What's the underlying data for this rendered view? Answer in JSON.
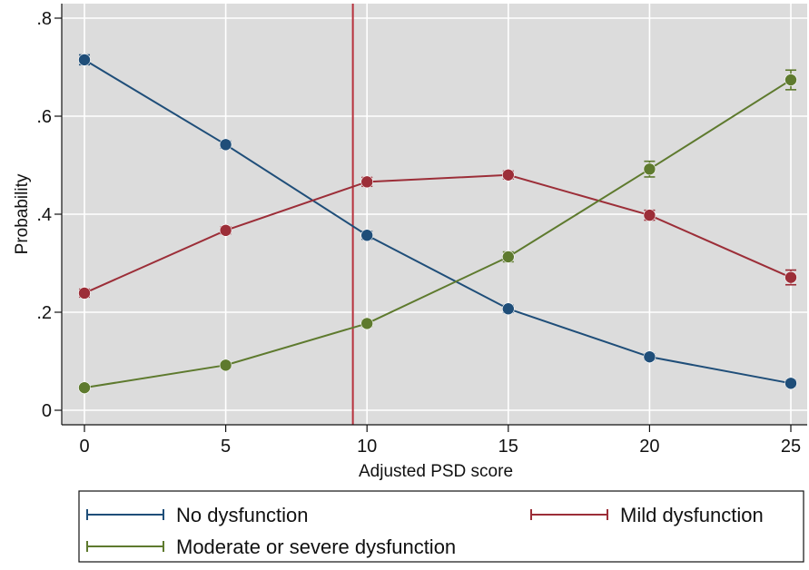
{
  "chart_data": {
    "type": "line",
    "title": "",
    "xlabel": "Adjusted PSD score",
    "ylabel": "Probability",
    "x": [
      0,
      5,
      10,
      15,
      20,
      25
    ],
    "xlim": [
      0,
      25
    ],
    "ylim": [
      0,
      0.8
    ],
    "xticks": [
      0,
      5,
      10,
      15,
      20,
      25
    ],
    "xtick_labels": [
      "0",
      "5",
      "10",
      "15",
      "20",
      "25"
    ],
    "yticks": [
      0,
      0.2,
      0.4,
      0.6,
      0.8
    ],
    "ytick_labels": [
      "0",
      ".2",
      ".4",
      ".6",
      ".8"
    ],
    "grid": true,
    "legend_position": "bottom",
    "reference_line": {
      "x": 9.5,
      "color": "#b8323e"
    },
    "series": [
      {
        "name": "No dysfunction",
        "color": "#1f4e79",
        "values": [
          0.715,
          0.542,
          0.357,
          0.207,
          0.109,
          0.055
        ],
        "error": [
          0.01,
          0.007,
          0.008,
          0.007,
          0.006,
          0.006
        ]
      },
      {
        "name": "Mild dysfunction",
        "color": "#9c2e38",
        "values": [
          0.239,
          0.367,
          0.466,
          0.48,
          0.398,
          0.271
        ],
        "error": [
          0.008,
          0.007,
          0.009,
          0.008,
          0.01,
          0.015
        ]
      },
      {
        "name": "Moderate or severe dysfunction",
        "color": "#5e7a2e",
        "values": [
          0.046,
          0.092,
          0.177,
          0.313,
          0.492,
          0.674
        ],
        "error": [
          0.004,
          0.005,
          0.006,
          0.01,
          0.016,
          0.02
        ]
      }
    ]
  }
}
